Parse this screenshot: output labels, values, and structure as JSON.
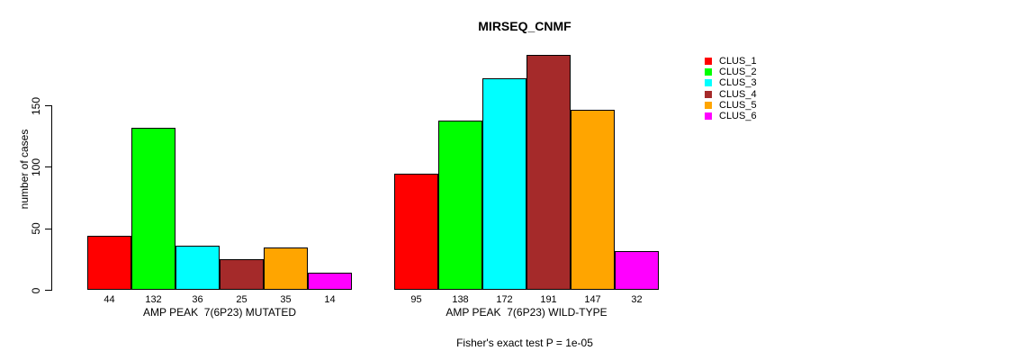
{
  "chart_data": {
    "type": "bar",
    "title": "MIRSEQ_CNMF",
    "ylabel": "number of cases",
    "ylim": [
      0,
      150
    ],
    "yticks": [
      0,
      50,
      100,
      150
    ],
    "grid": false,
    "legend_position": "right",
    "series_names": [
      "CLUS_1",
      "CLUS_2",
      "CLUS_3",
      "CLUS_4",
      "CLUS_5",
      "CLUS_6"
    ],
    "colors": [
      "#ff0000",
      "#00ff00",
      "#00ffff",
      "#a52a2a",
      "#ffa500",
      "#ff00ff"
    ],
    "groups": [
      {
        "label": "AMP PEAK  7(6P23) MUTATED",
        "values": [
          44,
          132,
          36,
          25,
          35,
          14
        ]
      },
      {
        "label": "AMP PEAK  7(6P23) WILD-TYPE",
        "values": [
          95,
          138,
          172,
          191,
          147,
          32
        ]
      }
    ],
    "bar_value_labels_shown": true,
    "annotation": "Fisher's exact test P = 1e-05"
  }
}
